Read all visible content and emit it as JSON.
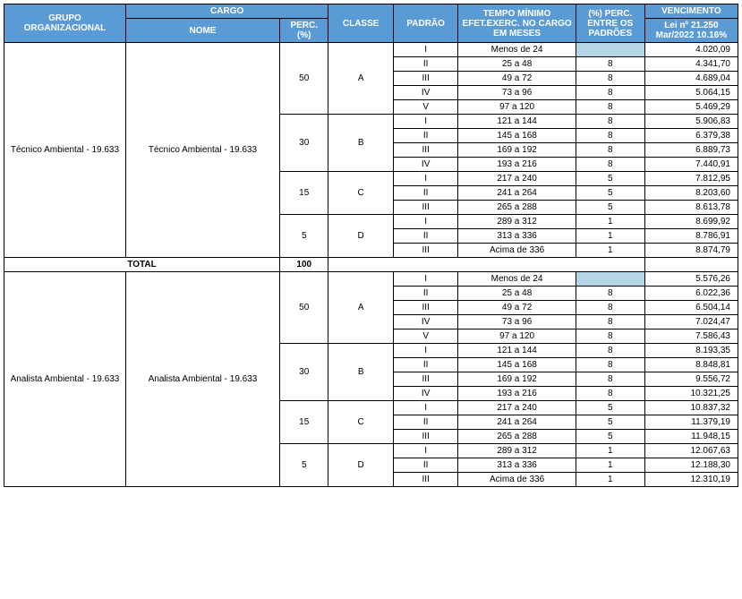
{
  "headers": {
    "grupo": "GRUPO ORGANIZACIONAL",
    "cargo": "CARGO",
    "nome": "NOME",
    "perc": "PERC. (%)",
    "classe": "CLASSE",
    "padrao": "PADRÃO",
    "tempo": "TEMPO MÍNIMO EFET.EXERC. NO CARGO EM MESES",
    "perc_padroes": "(%) PERC. ENTRE OS PADRÕES",
    "vencimento": "VENCIMENTO",
    "venc_sub": "Lei nº   21.250 Mar/2022 10.16%"
  },
  "total_label": "TOTAL",
  "total_value": "100",
  "groups": [
    {
      "grupo": "Técnico Ambiental - 19.633",
      "nome": "Técnico Ambiental - 19.633",
      "classes": [
        {
          "perc": "50",
          "classe": "A",
          "rows": [
            {
              "padrao": "I",
              "tempo": "Menos de 24",
              "pp": "",
              "venc": "4.020,09",
              "shade": true
            },
            {
              "padrao": "II",
              "tempo": "25 a 48",
              "pp": "8",
              "venc": "4.341,70"
            },
            {
              "padrao": "III",
              "tempo": "49 a 72",
              "pp": "8",
              "venc": "4.689,04"
            },
            {
              "padrao": "IV",
              "tempo": "73 a 96",
              "pp": "8",
              "venc": "5.064,15"
            },
            {
              "padrao": "V",
              "tempo": "97 a 120",
              "pp": "8",
              "venc": "5.469,29"
            }
          ]
        },
        {
          "perc": "30",
          "classe": "B",
          "rows": [
            {
              "padrao": "I",
              "tempo": "121 a 144",
              "pp": "8",
              "venc": "5.906,83"
            },
            {
              "padrao": "II",
              "tempo": "145 a 168",
              "pp": "8",
              "venc": "6.379,38"
            },
            {
              "padrao": "III",
              "tempo": "169  a 192",
              "pp": "8",
              "venc": "6.889,73"
            },
            {
              "padrao": "IV",
              "tempo": "193 a 216",
              "pp": "8",
              "venc": "7.440,91"
            }
          ]
        },
        {
          "perc": "15",
          "classe": "C",
          "rows": [
            {
              "padrao": "I",
              "tempo": "217 a 240",
              "pp": "5",
              "venc": "7.812,95"
            },
            {
              "padrao": "II",
              "tempo": "241 a 264",
              "pp": "5",
              "venc": "8.203,60"
            },
            {
              "padrao": "III",
              "tempo": "265 a 288",
              "pp": "5",
              "venc": "8.613,78"
            }
          ]
        },
        {
          "perc": "5",
          "classe": "D",
          "rows": [
            {
              "padrao": "I",
              "tempo": "289 a 312",
              "pp": "1",
              "venc": "8.699,92"
            },
            {
              "padrao": "II",
              "tempo": "313 a 336",
              "pp": "1",
              "venc": "8.786,91"
            },
            {
              "padrao": "III",
              "tempo": "Acima de 336",
              "pp": "1",
              "venc": "8.874,79"
            }
          ]
        }
      ]
    },
    {
      "grupo": "Analista Ambiental - 19.633",
      "nome": "Analista Ambiental - 19.633",
      "classes": [
        {
          "perc": "50",
          "classe": "A",
          "rows": [
            {
              "padrao": "I",
              "tempo": "Menos de 24",
              "pp": "",
              "venc": "5.576,26",
              "shade": true
            },
            {
              "padrao": "II",
              "tempo": "25 a 48",
              "pp": "8",
              "venc": "6.022,36"
            },
            {
              "padrao": "III",
              "tempo": "49 a 72",
              "pp": "8",
              "venc": "6.504,14"
            },
            {
              "padrao": "IV",
              "tempo": "73 a 96",
              "pp": "8",
              "venc": "7.024,47"
            },
            {
              "padrao": "V",
              "tempo": "97 a 120",
              "pp": "8",
              "venc": "7.586,43"
            }
          ]
        },
        {
          "perc": "30",
          "classe": "B",
          "rows": [
            {
              "padrao": "I",
              "tempo": "121 a 144",
              "pp": "8",
              "venc": "8.193,35"
            },
            {
              "padrao": "II",
              "tempo": "145 a 168",
              "pp": "8",
              "venc": "8.848,81"
            },
            {
              "padrao": "III",
              "tempo": "169  a 192",
              "pp": "8",
              "venc": "9.556,72"
            },
            {
              "padrao": "IV",
              "tempo": "193 a 216",
              "pp": "8",
              "venc": "10.321,25"
            }
          ]
        },
        {
          "perc": "15",
          "classe": "C",
          "rows": [
            {
              "padrao": "I",
              "tempo": "217 a 240",
              "pp": "5",
              "venc": "10.837,32"
            },
            {
              "padrao": "II",
              "tempo": "241 a 264",
              "pp": "5",
              "venc": "11.379,19"
            },
            {
              "padrao": "III",
              "tempo": "265 a 288",
              "pp": "5",
              "venc": "11.948,15"
            }
          ]
        },
        {
          "perc": "5",
          "classe": "D",
          "rows": [
            {
              "padrao": "I",
              "tempo": "289 a 312",
              "pp": "1",
              "venc": "12.067,63"
            },
            {
              "padrao": "II",
              "tempo": "313 a 336",
              "pp": "1",
              "venc": "12.188,30"
            },
            {
              "padrao": "III",
              "tempo": "Acima de 336",
              "pp": "1",
              "venc": "12.310,19"
            }
          ]
        }
      ]
    }
  ]
}
